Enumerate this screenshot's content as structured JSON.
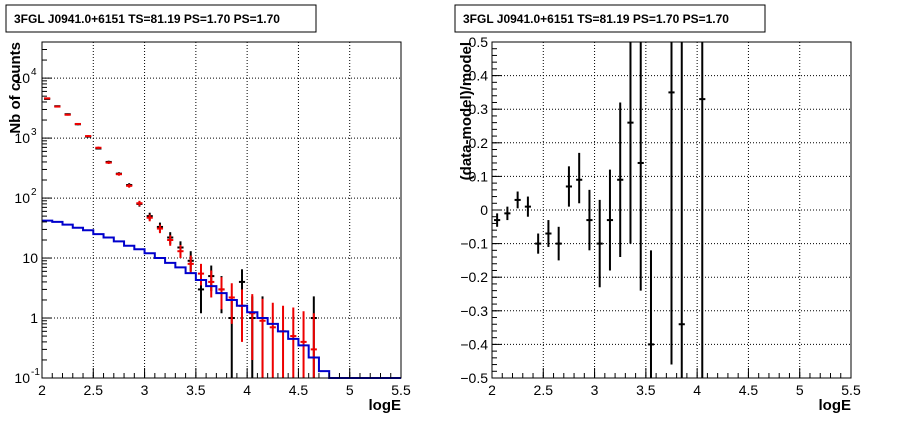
{
  "chart_data": [
    {
      "type": "scatter",
      "title": "3FGL J0941.0+6151 TS=81.19 PS=1.70 PS=1.70",
      "xlabel": "logE",
      "ylabel": "Nb of counts",
      "xlim": [
        2,
        5.5
      ],
      "ylim": [
        0.1,
        40000
      ],
      "yscale": "log",
      "grid": true,
      "x_ticks": [
        "2",
        "2.5",
        "3",
        "3.5",
        "4",
        "4.5",
        "5",
        "5.5"
      ],
      "y_ticks": [
        {
          "v": 0.1,
          "base": "10",
          "exp": "-1"
        },
        {
          "v": 1,
          "base": "1",
          "exp": ""
        },
        {
          "v": 10,
          "base": "10",
          "exp": ""
        },
        {
          "v": 100,
          "base": "10",
          "exp": "2"
        },
        {
          "v": 1000,
          "base": "10",
          "exp": "3"
        },
        {
          "v": 10000,
          "base": "10",
          "exp": "4"
        }
      ],
      "bin_width": 0.1,
      "series": [
        {
          "color": "#000000",
          "kind": "data",
          "points": [
            [
              2.05,
              4500,
              4400,
              4600
            ],
            [
              2.15,
              3400,
              3300,
              3500
            ],
            [
              2.25,
              2500,
              2420,
              2580
            ],
            [
              2.35,
              1700,
              1640,
              1760
            ],
            [
              2.45,
              1060,
              1020,
              1100
            ],
            [
              2.55,
              670,
              645,
              695
            ],
            [
              2.65,
              400,
              380,
              420
            ],
            [
              2.75,
              255,
              240,
              270
            ],
            [
              2.85,
              165,
              153,
              177
            ],
            [
              2.95,
              80,
              72,
              89
            ],
            [
              3.05,
              50,
              43,
              57
            ],
            [
              3.15,
              33,
              27,
              39
            ],
            [
              3.25,
              22,
              17,
              27
            ],
            [
              3.35,
              15,
              11,
              19
            ],
            [
              3.45,
              9,
              6,
              13
            ],
            [
              3.55,
              3,
              1.2,
              5
            ],
            [
              3.65,
              5,
              2.8,
              7.5
            ],
            [
              3.75,
              3,
              1.2,
              5
            ],
            [
              3.85,
              1,
              0.1,
              2.3
            ],
            [
              3.95,
              4,
              2,
              6.5
            ],
            [
              4.05,
              1,
              0.1,
              2.3
            ],
            [
              4.15,
              1,
              0.1,
              2.3
            ],
            [
              4.65,
              1,
              0.1,
              2.3
            ]
          ]
        },
        {
          "color": "#ee0000",
          "kind": "model-points",
          "points": [
            [
              2.05,
              4600,
              4500,
              4700
            ],
            [
              2.15,
              3350,
              3250,
              3450
            ],
            [
              2.25,
              2450,
              2370,
              2530
            ],
            [
              2.35,
              1720,
              1660,
              1780
            ],
            [
              2.45,
              1080,
              1040,
              1120
            ],
            [
              2.55,
              690,
              660,
              720
            ],
            [
              2.65,
              390,
              370,
              410
            ],
            [
              2.75,
              250,
              236,
              264
            ],
            [
              2.85,
              160,
              149,
              171
            ],
            [
              2.95,
              82,
              74,
              90
            ],
            [
              3.05,
              47,
              41,
              53
            ],
            [
              3.15,
              31,
              26,
              36
            ],
            [
              3.25,
              20,
              16,
              24
            ],
            [
              3.35,
              13,
              10,
              16.5
            ],
            [
              3.45,
              8,
              5.5,
              11
            ],
            [
              3.55,
              5.5,
              3.5,
              8
            ],
            [
              3.65,
              4,
              2.2,
              6.2
            ],
            [
              3.75,
              3,
              1.4,
              4.8
            ],
            [
              3.85,
              2.2,
              0.8,
              3.8
            ],
            [
              3.95,
              1.6,
              0.4,
              3
            ],
            [
              4.05,
              1.2,
              0.2,
              2.5
            ],
            [
              4.15,
              0.9,
              0.1,
              2.1
            ],
            [
              4.25,
              0.7,
              0.1,
              1.8
            ],
            [
              4.35,
              0.6,
              0.1,
              1.6
            ],
            [
              4.45,
              0.5,
              0.1,
              1.5
            ],
            [
              4.55,
              0.4,
              0.1,
              1.3
            ],
            [
              4.65,
              0.3,
              0.1,
              1.2
            ]
          ]
        },
        {
          "color": "#0000cc",
          "kind": "step-histogram",
          "edges": [
            2.0,
            2.1,
            2.2,
            2.3,
            2.4,
            2.5,
            2.6,
            2.7,
            2.8,
            2.9,
            3.0,
            3.1,
            3.2,
            3.3,
            3.4,
            3.5,
            3.6,
            3.7,
            3.8,
            3.9,
            4.0,
            4.1,
            4.2,
            4.3,
            4.4,
            4.5,
            4.6,
            4.7,
            4.8,
            5.5
          ],
          "values": [
            42,
            40,
            36,
            32,
            29,
            25,
            22,
            19,
            16,
            14,
            12,
            10,
            8.3,
            7,
            5.6,
            4.3,
            3.4,
            2.6,
            2.0,
            1.6,
            1.25,
            1.0,
            0.8,
            0.6,
            0.45,
            0.35,
            0.22,
            0.13,
            0.1
          ]
        }
      ]
    },
    {
      "type": "scatter",
      "title": "3FGL J0941.0+6151 TS=81.19 PS=1.70 PS=1.70",
      "xlabel": "logE",
      "ylabel": "(data-model)/model",
      "xlim": [
        2,
        5.5
      ],
      "ylim": [
        -0.5,
        0.5
      ],
      "yscale": "linear",
      "grid": true,
      "x_ticks": [
        "2",
        "2.5",
        "3",
        "3.5",
        "4",
        "4.5",
        "5",
        "5.5"
      ],
      "y_ticks": [
        "−0.5",
        "−0.4",
        "−0.3",
        "−0.2",
        "−0.1",
        "0",
        "0.1",
        "0.2",
        "0.3",
        "0.4",
        "0.5"
      ],
      "bin_width": 0.1,
      "series": [
        {
          "color": "#000000",
          "kind": "residuals",
          "points": [
            [
              2.05,
              -0.03,
              -0.05,
              -0.01
            ],
            [
              2.15,
              -0.01,
              -0.03,
              0.01
            ],
            [
              2.25,
              0.03,
              0.005,
              0.055
            ],
            [
              2.35,
              0.01,
              -0.02,
              0.04
            ],
            [
              2.45,
              -0.1,
              -0.13,
              -0.07
            ],
            [
              2.55,
              -0.07,
              -0.11,
              -0.03
            ],
            [
              2.65,
              -0.1,
              -0.15,
              -0.05
            ],
            [
              2.75,
              0.07,
              0.01,
              0.13
            ],
            [
              2.85,
              0.09,
              0.02,
              0.17
            ],
            [
              2.95,
              -0.03,
              -0.12,
              0.06
            ],
            [
              3.05,
              -0.1,
              -0.23,
              0.03
            ],
            [
              3.15,
              -0.03,
              -0.18,
              0.12
            ],
            [
              3.25,
              0.09,
              -0.14,
              0.32
            ],
            [
              3.35,
              0.26,
              -0.1,
              0.5
            ],
            [
              3.45,
              0.14,
              -0.24,
              0.5
            ],
            [
              3.55,
              -0.4,
              -0.5,
              -0.12
            ],
            [
              3.75,
              0.35,
              -0.46,
              0.5
            ],
            [
              3.85,
              -0.34,
              -0.5,
              0.5
            ],
            [
              4.05,
              0.33,
              -0.5,
              0.5
            ]
          ]
        }
      ]
    }
  ]
}
